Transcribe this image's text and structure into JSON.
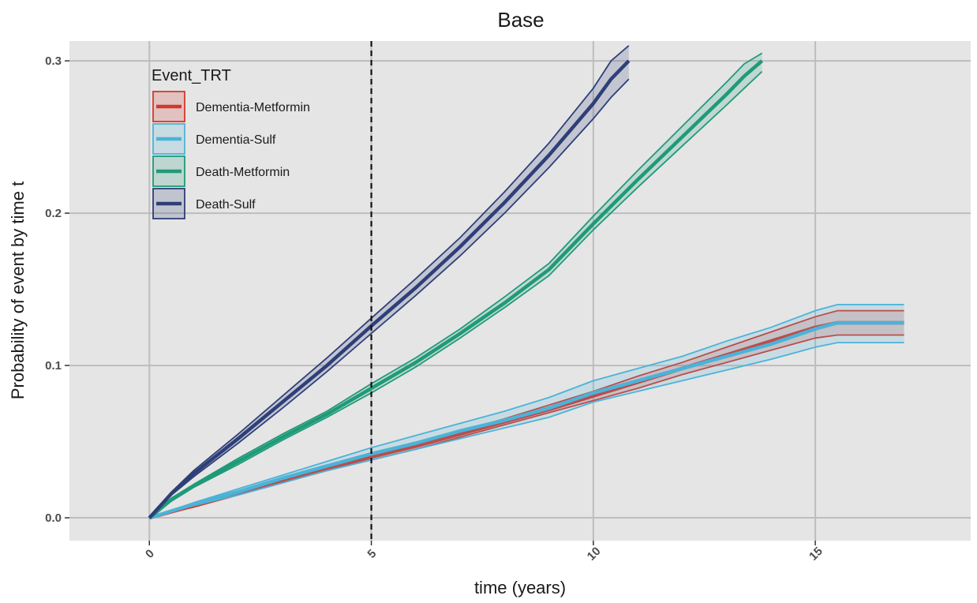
{
  "chart_data": {
    "type": "line",
    "title": "Base",
    "xlabel": "time (years)",
    "ylabel": "Probability of event by time t",
    "xlim": [
      -1.8,
      18.5
    ],
    "ylim": [
      -0.015,
      0.313
    ],
    "x_ticks": [
      0,
      5,
      10,
      15
    ],
    "x_tick_labels": [
      "0",
      "5",
      "10",
      "15"
    ],
    "y_ticks": [
      0.0,
      0.1,
      0.2,
      0.3
    ],
    "y_tick_labels": [
      "0.0",
      "0.1",
      "0.2",
      "0.3"
    ],
    "grid": true,
    "reference_line": {
      "x": 5,
      "style": "dashed"
    },
    "legend": {
      "title": "Event_TRT",
      "position": "top-left"
    },
    "series": [
      {
        "name": "Dementia-Metformin",
        "color": "#d2382c",
        "x": [
          0,
          1,
          2,
          3,
          4,
          5,
          6,
          7,
          8,
          9,
          10,
          11,
          12,
          13,
          14,
          15,
          15.5,
          17
        ],
        "y": [
          0,
          0.008,
          0.016,
          0.024,
          0.032,
          0.04,
          0.047,
          0.055,
          0.063,
          0.071,
          0.08,
          0.089,
          0.098,
          0.107,
          0.116,
          0.125,
          0.128,
          0.128
        ],
        "lower": [
          0,
          0.007,
          0.015,
          0.023,
          0.031,
          0.038,
          0.045,
          0.053,
          0.061,
          0.069,
          0.077,
          0.085,
          0.094,
          0.102,
          0.11,
          0.118,
          0.12,
          0.12
        ],
        "upper": [
          0,
          0.009,
          0.017,
          0.025,
          0.033,
          0.041,
          0.049,
          0.057,
          0.065,
          0.074,
          0.083,
          0.093,
          0.102,
          0.112,
          0.122,
          0.132,
          0.136,
          0.136
        ]
      },
      {
        "name": "Dementia-Sulf",
        "color": "#4bb3d8",
        "x": [
          0,
          1,
          2,
          3,
          4,
          5,
          6,
          7,
          8,
          9,
          10,
          11,
          12,
          13,
          14,
          15,
          15.5,
          17
        ],
        "y": [
          0,
          0.009,
          0.017,
          0.026,
          0.034,
          0.042,
          0.049,
          0.057,
          0.064,
          0.072,
          0.082,
          0.09,
          0.098,
          0.106,
          0.114,
          0.124,
          0.128,
          0.128
        ],
        "lower": [
          0,
          0.008,
          0.015,
          0.023,
          0.031,
          0.038,
          0.045,
          0.052,
          0.059,
          0.066,
          0.076,
          0.083,
          0.09,
          0.097,
          0.104,
          0.112,
          0.115,
          0.115
        ],
        "upper": [
          0,
          0.01,
          0.019,
          0.028,
          0.037,
          0.046,
          0.054,
          0.062,
          0.07,
          0.079,
          0.09,
          0.098,
          0.106,
          0.116,
          0.125,
          0.136,
          0.14,
          0.14
        ]
      },
      {
        "name": "Death-Metformin",
        "color": "#1f9a78",
        "x": [
          0,
          0.5,
          1,
          2,
          3,
          4,
          5,
          6,
          7,
          8,
          9,
          10,
          11,
          12,
          13,
          13.4,
          13.8
        ],
        "y": [
          0,
          0.012,
          0.021,
          0.037,
          0.053,
          0.068,
          0.085,
          0.102,
          0.121,
          0.141,
          0.163,
          0.193,
          0.222,
          0.25,
          0.278,
          0.29,
          0.3
        ],
        "lower": [
          0,
          0.011,
          0.02,
          0.035,
          0.051,
          0.066,
          0.082,
          0.099,
          0.118,
          0.138,
          0.159,
          0.189,
          0.217,
          0.244,
          0.271,
          0.282,
          0.293
        ],
        "upper": [
          0,
          0.013,
          0.022,
          0.039,
          0.055,
          0.07,
          0.088,
          0.105,
          0.124,
          0.145,
          0.167,
          0.198,
          0.228,
          0.257,
          0.286,
          0.298,
          0.305
        ]
      },
      {
        "name": "Death-Sulf",
        "color": "#2e3f78",
        "x": [
          0,
          0.5,
          1,
          2,
          3,
          4,
          5,
          6,
          7,
          8,
          9,
          10,
          10.4,
          10.8
        ],
        "y": [
          0,
          0.016,
          0.029,
          0.052,
          0.076,
          0.1,
          0.126,
          0.151,
          0.178,
          0.207,
          0.238,
          0.272,
          0.288,
          0.3
        ],
        "lower": [
          0,
          0.015,
          0.027,
          0.049,
          0.072,
          0.096,
          0.121,
          0.146,
          0.172,
          0.2,
          0.23,
          0.262,
          0.276,
          0.288
        ],
        "upper": [
          0,
          0.017,
          0.031,
          0.055,
          0.08,
          0.105,
          0.131,
          0.157,
          0.184,
          0.214,
          0.246,
          0.282,
          0.3,
          0.31
        ]
      }
    ]
  }
}
